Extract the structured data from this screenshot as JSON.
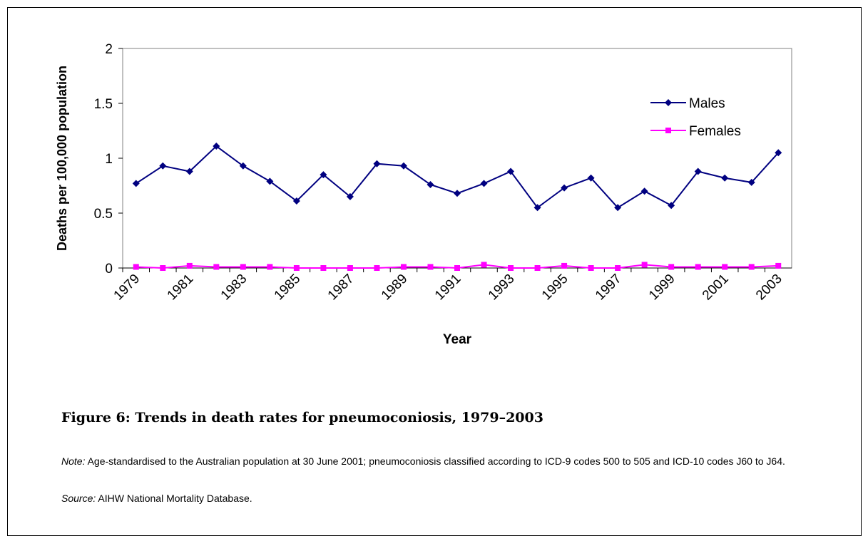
{
  "chart_data": {
    "type": "line",
    "categories": [
      "1979",
      null,
      "1981",
      null,
      "1983",
      null,
      "1985",
      null,
      "1987",
      null,
      "1989",
      null,
      "1991",
      null,
      "1993",
      null,
      "1995",
      null,
      "1997",
      null,
      "1999",
      null,
      "2001",
      null,
      "2003"
    ],
    "series": [
      {
        "name": "Males",
        "color": "#000080",
        "marker": "diamond",
        "values": [
          0.77,
          0.93,
          0.88,
          1.11,
          0.93,
          0.79,
          0.61,
          0.85,
          0.65,
          0.95,
          0.93,
          0.76,
          0.68,
          0.77,
          0.88,
          0.55,
          0.73,
          0.82,
          0.55,
          0.7,
          0.57,
          0.88,
          0.82,
          0.78,
          1.05
        ]
      },
      {
        "name": "Females",
        "color": "#ff00ff",
        "marker": "square",
        "values": [
          0.01,
          0,
          0.02,
          0.01,
          0.01,
          0.01,
          0,
          0,
          0,
          0,
          0.01,
          0.01,
          0,
          0.03,
          0,
          0,
          0.02,
          0,
          0,
          0.03,
          0.01,
          0.01,
          0.01,
          0.01,
          0.02
        ]
      }
    ],
    "ylim": [
      0,
      2
    ],
    "yticks": [
      0,
      0.5,
      1,
      1.5,
      2
    ],
    "y_label": "Deaths per 100,000 population",
    "x_label": "Year",
    "grid": false,
    "legend": "upper right"
  },
  "caption": "Figure 6: Trends in death rates for pneumoconiosis, 1979–2003",
  "note": {
    "label": "Note:",
    "text": "Age-standardised to the Australian population at 30 June 2001; pneumoconiosis classified according to ICD-9 codes 500 to 505 and ICD-10 codes J60 to J64."
  },
  "source": {
    "label": "Source:",
    "text": "AIHW National Mortality Database."
  }
}
